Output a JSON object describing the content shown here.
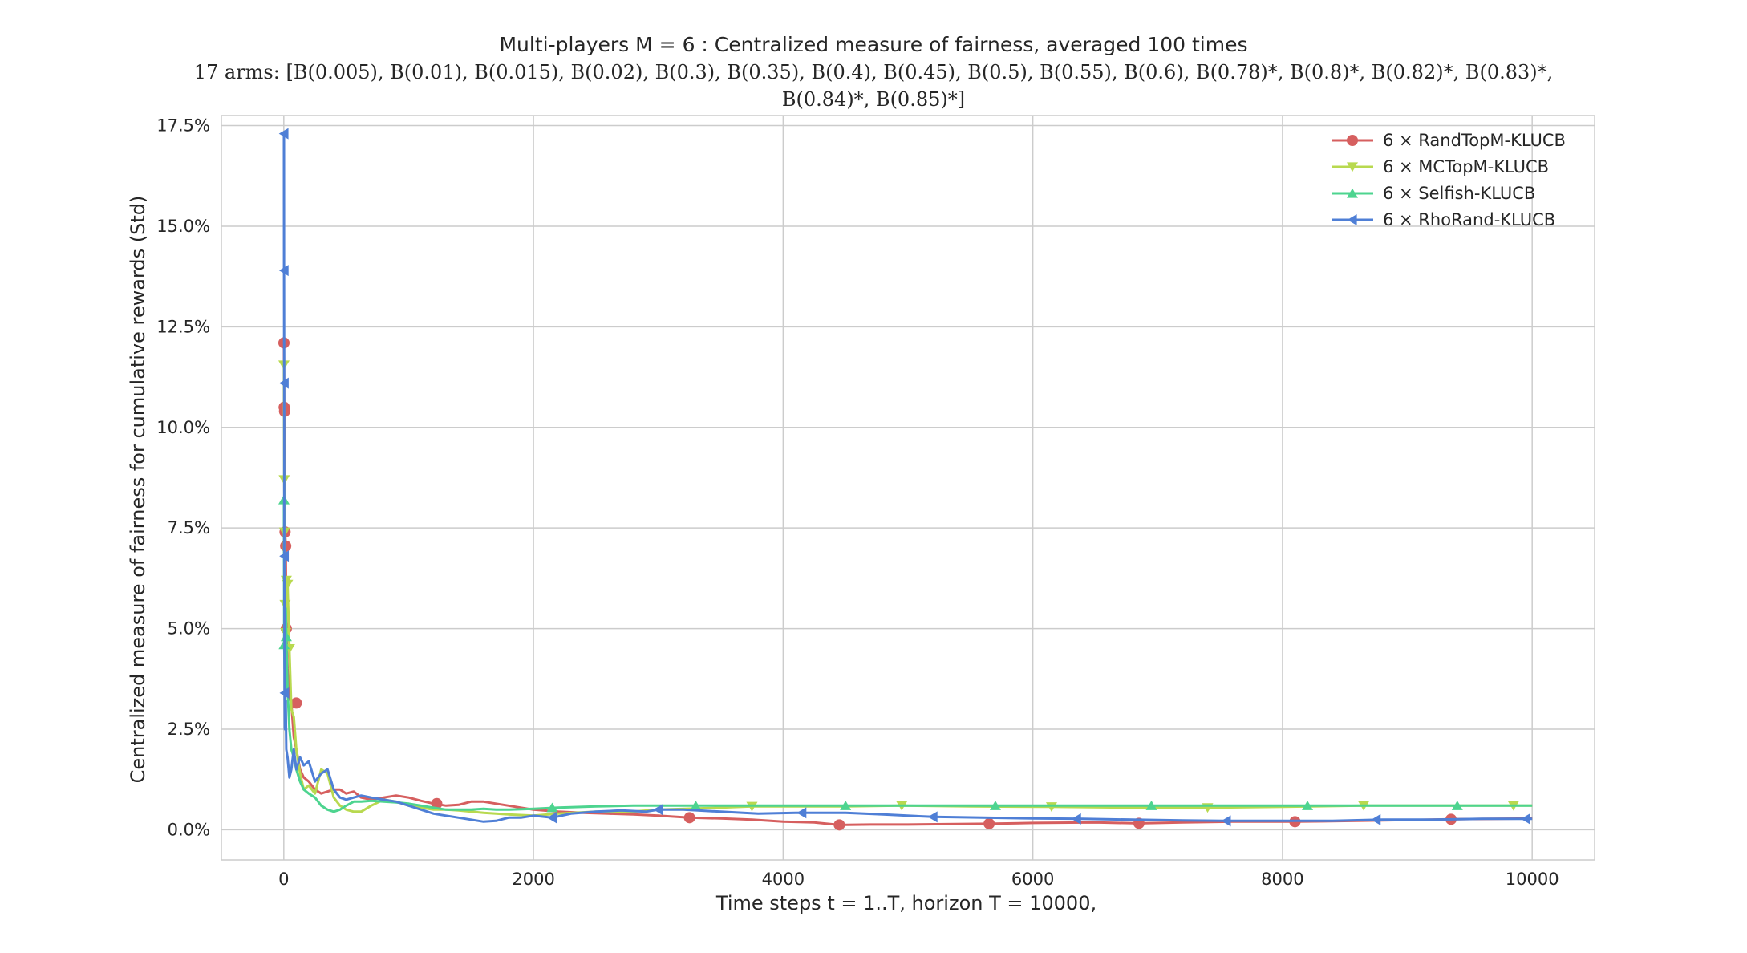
{
  "chart_data": {
    "type": "line",
    "title": "Multi-players M = 6 : Centralized measure of fairness, averaged 100 times",
    "subtitle_lines": [
      "17 arms: [B(0.005), B(0.01), B(0.015), B(0.02), B(0.3), B(0.35), B(0.4), B(0.45), B(0.5), B(0.55), B(0.6), B(0.78)*, B(0.8)*, B(0.82)*, B(0.83)*,",
      "B(0.84)*, B(0.85)*]"
    ],
    "xlabel": "Time steps t = 1..T, horizon T = 10000,",
    "ylabel": "Centralized measure of fairness for cumulative rewards (Std)",
    "xlim": [
      -500,
      10500
    ],
    "ylim": [
      -0.75,
      17.75
    ],
    "x_ticks": [
      0,
      2000,
      4000,
      6000,
      8000,
      10000
    ],
    "x_tick_labels": [
      "0",
      "2000",
      "4000",
      "6000",
      "8000",
      "10000"
    ],
    "y_ticks": [
      0,
      2.5,
      5,
      7.5,
      10,
      12.5,
      15,
      17.5
    ],
    "y_tick_labels": [
      "0.0%",
      "2.5%",
      "5.0%",
      "7.5%",
      "10.0%",
      "12.5%",
      "15.0%",
      "17.5%"
    ],
    "grid": true,
    "legend_position": "top-right",
    "series": [
      {
        "name": "6 × RandTopM-KLUCB",
        "color": "#d65f5f",
        "marker": "circle",
        "x": [
          1,
          3,
          6,
          10,
          15,
          20,
          30,
          45,
          60,
          80,
          100,
          130,
          160,
          200,
          250,
          300,
          350,
          400,
          450,
          500,
          560,
          620,
          700,
          800,
          900,
          1000,
          1100,
          1200,
          1300,
          1400,
          1500,
          1600,
          1700,
          1800,
          1900,
          2000,
          2200,
          2400,
          2600,
          2800,
          3000,
          3250,
          3500,
          3750,
          4000,
          4250,
          4450,
          4700,
          5000,
          5300,
          5650,
          6000,
          6500,
          6850,
          7200,
          7600,
          8100,
          8600,
          9000,
          9350,
          9700,
          10000
        ],
        "y": [
          12.1,
          10.5,
          10.4,
          7.4,
          7.05,
          5.0,
          4.0,
          3.3,
          3.15,
          2.3,
          2.0,
          1.5,
          1.3,
          1.2,
          1.0,
          0.9,
          0.95,
          1.0,
          1.0,
          0.9,
          0.95,
          0.8,
          0.75,
          0.8,
          0.85,
          0.8,
          0.72,
          0.65,
          0.6,
          0.62,
          0.7,
          0.7,
          0.65,
          0.6,
          0.55,
          0.5,
          0.45,
          0.42,
          0.4,
          0.38,
          0.35,
          0.3,
          0.28,
          0.25,
          0.2,
          0.18,
          0.12,
          0.13,
          0.13,
          0.14,
          0.15,
          0.17,
          0.18,
          0.16,
          0.18,
          0.2,
          0.2,
          0.22,
          0.24,
          0.26,
          0.27,
          0.28
        ],
        "marker_x": [
          1,
          3,
          6,
          10,
          15,
          20,
          100,
          1225,
          3250,
          4450,
          5650,
          6850,
          8100,
          9350
        ],
        "marker_y": [
          12.1,
          10.5,
          10.4,
          7.4,
          7.05,
          5.0,
          3.15,
          0.65,
          0.3,
          0.12,
          0.15,
          0.16,
          0.2,
          0.26
        ]
      },
      {
        "name": "6 × MCTopM-KLUCB",
        "color": "#b8d94f",
        "marker": "triangle-down",
        "x": [
          1,
          3,
          6,
          10,
          15,
          20,
          30,
          45,
          60,
          80,
          100,
          130,
          160,
          200,
          250,
          300,
          350,
          400,
          450,
          500,
          560,
          620,
          700,
          800,
          900,
          1000,
          1100,
          1200,
          1300,
          1400,
          1500,
          1600,
          1700,
          1800,
          2000,
          2200,
          2500,
          2800,
          3000,
          3500,
          3750,
          4000,
          4500,
          4950,
          5500,
          6150,
          6800,
          7400,
          8000,
          8650,
          9300,
          9800,
          10000
        ],
        "y": [
          11.55,
          8.7,
          7.4,
          5.6,
          4.9,
          6.2,
          6.1,
          4.5,
          3.0,
          2.8,
          2.0,
          1.4,
          1.0,
          1.1,
          0.9,
          1.5,
          1.4,
          0.8,
          0.6,
          0.5,
          0.45,
          0.45,
          0.6,
          0.75,
          0.7,
          0.6,
          0.55,
          0.5,
          0.5,
          0.48,
          0.45,
          0.42,
          0.4,
          0.38,
          0.35,
          0.4,
          0.45,
          0.45,
          0.5,
          0.55,
          0.58,
          0.58,
          0.58,
          0.6,
          0.58,
          0.57,
          0.55,
          0.55,
          0.57,
          0.6,
          0.6,
          0.6,
          0.6
        ],
        "marker_x": [
          1,
          3,
          6,
          10,
          15,
          20,
          30,
          45,
          3750,
          4950,
          6150,
          7400,
          8650,
          9850
        ],
        "marker_y": [
          11.55,
          8.7,
          7.4,
          5.6,
          4.9,
          6.2,
          6.1,
          4.5,
          0.58,
          0.6,
          0.57,
          0.55,
          0.6,
          0.6
        ]
      },
      {
        "name": "6 × Selfish-KLUCB",
        "color": "#4dd48f",
        "marker": "triangle-up",
        "x": [
          1,
          3,
          6,
          10,
          15,
          20,
          30,
          45,
          60,
          80,
          100,
          130,
          160,
          200,
          250,
          300,
          350,
          400,
          450,
          500,
          560,
          620,
          700,
          800,
          900,
          1000,
          1100,
          1200,
          1300,
          1400,
          1500,
          1600,
          1700,
          1800,
          2000,
          2200,
          2500,
          2800,
          3000,
          3300,
          3600,
          4000,
          4500,
          5000,
          5700,
          6300,
          6950,
          7600,
          8200,
          8800,
          9400,
          10000
        ],
        "y": [
          8.2,
          4.6,
          4.0,
          5.0,
          5.5,
          4.8,
          3.5,
          2.5,
          2.0,
          1.8,
          1.5,
          1.2,
          1.0,
          0.9,
          0.8,
          0.6,
          0.5,
          0.45,
          0.5,
          0.6,
          0.7,
          0.7,
          0.72,
          0.7,
          0.68,
          0.65,
          0.6,
          0.55,
          0.5,
          0.5,
          0.5,
          0.52,
          0.5,
          0.5,
          0.52,
          0.55,
          0.58,
          0.6,
          0.6,
          0.6,
          0.6,
          0.6,
          0.6,
          0.6,
          0.6,
          0.6,
          0.6,
          0.6,
          0.6,
          0.6,
          0.6,
          0.6
        ],
        "marker_x": [
          1,
          3,
          20,
          2150,
          3300,
          4500,
          5700,
          6950,
          8200,
          9400
        ],
        "marker_y": [
          8.2,
          4.6,
          4.8,
          0.55,
          0.6,
          0.6,
          0.6,
          0.6,
          0.6,
          0.6
        ]
      },
      {
        "name": "6 × RhoRand-KLUCB",
        "color": "#4f7fd6",
        "marker": "triangle-left",
        "x": [
          1,
          2,
          3,
          4,
          6,
          8,
          10,
          15,
          20,
          30,
          45,
          60,
          80,
          100,
          130,
          160,
          200,
          250,
          300,
          350,
          400,
          450,
          500,
          560,
          620,
          700,
          800,
          900,
          1000,
          1100,
          1200,
          1300,
          1400,
          1500,
          1600,
          1700,
          1800,
          1900,
          2000,
          2150,
          2300,
          2500,
          2700,
          2900,
          3000,
          3200,
          3500,
          3800,
          4100,
          4500,
          4800,
          5200,
          5600,
          6000,
          6400,
          6800,
          7200,
          7600,
          8000,
          8400,
          8800,
          9200,
          9600,
          10000
        ],
        "y": [
          17.3,
          13.9,
          11.1,
          6.8,
          3.4,
          2.5,
          2.8,
          3.2,
          2.0,
          1.8,
          1.3,
          1.5,
          2.0,
          1.5,
          1.8,
          1.6,
          1.7,
          1.2,
          1.4,
          1.5,
          1.0,
          0.8,
          0.75,
          0.8,
          0.85,
          0.8,
          0.75,
          0.7,
          0.6,
          0.5,
          0.4,
          0.35,
          0.3,
          0.25,
          0.2,
          0.22,
          0.3,
          0.3,
          0.35,
          0.3,
          0.4,
          0.45,
          0.48,
          0.45,
          0.5,
          0.5,
          0.45,
          0.4,
          0.42,
          0.42,
          0.38,
          0.32,
          0.3,
          0.28,
          0.27,
          0.25,
          0.23,
          0.22,
          0.22,
          0.22,
          0.25,
          0.25,
          0.27,
          0.27
        ],
        "marker_x": [
          1,
          2,
          3,
          4,
          6,
          2150,
          3000,
          4150,
          5200,
          6350,
          7550,
          8750,
          9950
        ],
        "marker_y": [
          17.3,
          13.9,
          11.1,
          6.8,
          3.4,
          0.3,
          0.5,
          0.42,
          0.32,
          0.27,
          0.22,
          0.25,
          0.27
        ]
      }
    ]
  }
}
